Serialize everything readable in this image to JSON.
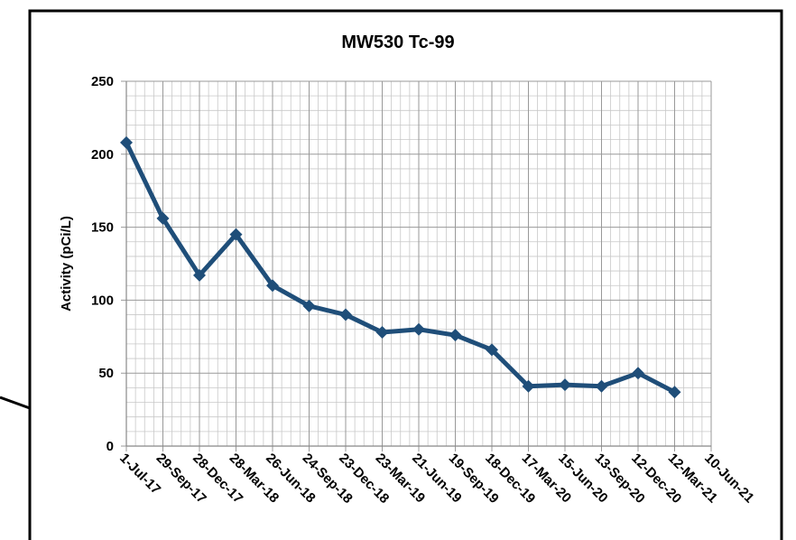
{
  "chart_data": {
    "type": "line",
    "title": "MW530 Tc-99",
    "y_label": "Activity (pCi/L)",
    "categories": [
      "1-Jul-17",
      "29-Sep-17",
      "28-Dec-17",
      "28-Mar-18",
      "26-Jun-18",
      "24-Sep-18",
      "23-Dec-18",
      "23-Mar-19",
      "21-Jun-19",
      "19-Sep-19",
      "18-Dec-19",
      "17-Mar-20",
      "15-Jun-20",
      "13-Sep-20",
      "12-Dec-20",
      "12-Mar-21",
      "10-Jun-21"
    ],
    "series": [
      {
        "name": "MW530 Tc-99",
        "color": "#1f4e79",
        "values": [
          208,
          156,
          117,
          145,
          110,
          96,
          90,
          78,
          80,
          76,
          66,
          41,
          42,
          41,
          50,
          37,
          null
        ]
      }
    ],
    "ylim": [
      0,
      250
    ],
    "yticks": [
      0,
      50,
      100,
      150,
      200,
      250
    ],
    "grid": true
  }
}
